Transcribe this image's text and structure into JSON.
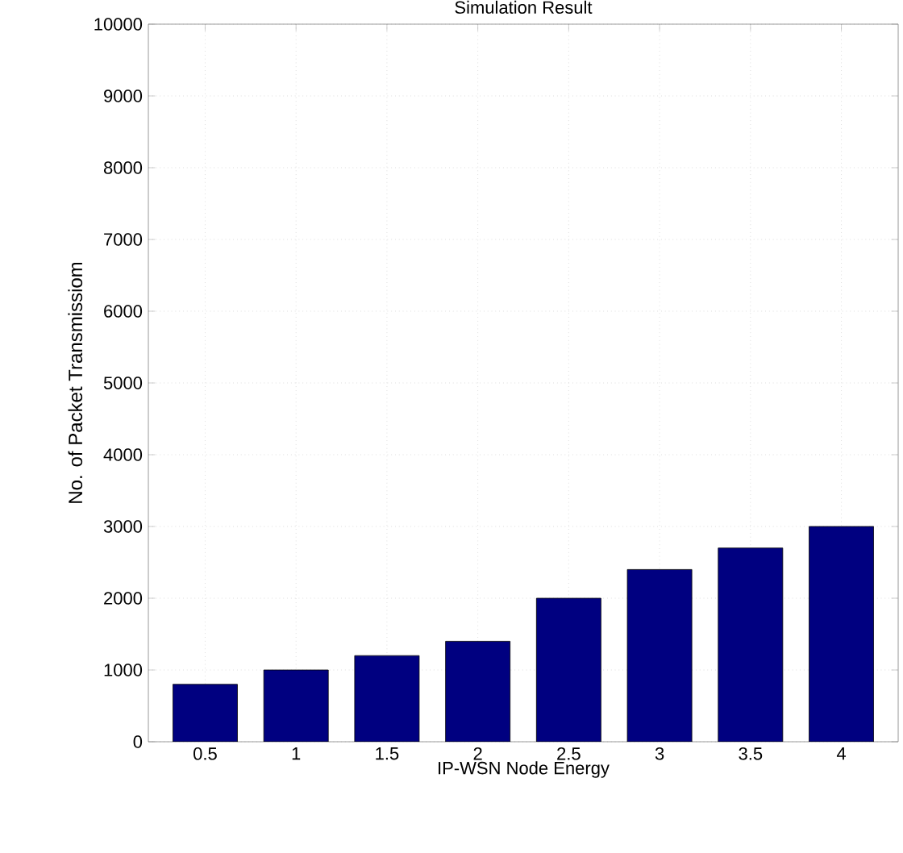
{
  "chart_data": {
    "type": "bar",
    "title": "Simulation Result",
    "xlabel": "IP-WSN Node Energy",
    "ylabel": "No. of Packet Transmissiom",
    "categories": [
      "0.5",
      "1",
      "1.5",
      "2",
      "2.5",
      "3",
      "3.5",
      "4"
    ],
    "values": [
      800,
      1000,
      1200,
      1400,
      2000,
      2400,
      2700,
      3000
    ],
    "color": "#000080",
    "ylim": [
      0,
      10000
    ],
    "yticks": [
      0,
      1000,
      2000,
      3000,
      4000,
      5000,
      6000,
      7000,
      8000,
      9000,
      10000
    ],
    "grid": true
  }
}
